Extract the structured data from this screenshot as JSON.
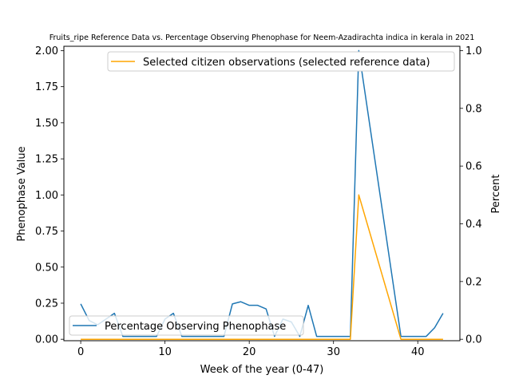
{
  "chart_data": {
    "type": "line",
    "title": "Fruits_ripe Reference Data vs. Percentage Observing Phenophase for Neem-Azadirachta indica in kerala in 2021",
    "xlabel": "Week of the year (0-47)",
    "ylabel": "Phenophase Value",
    "y2label": "Percent",
    "xlim": [
      -2,
      45
    ],
    "ylim": [
      -0.01,
      2.03
    ],
    "y2lim": [
      -0.005,
      1.015
    ],
    "xticks": [
      0,
      10,
      20,
      30,
      40
    ],
    "yticks": [
      0.0,
      0.25,
      0.5,
      0.75,
      1.0,
      1.25,
      1.5,
      1.75,
      2.0
    ],
    "y2ticks": [
      0.0,
      0.2,
      0.4,
      0.6,
      0.8,
      1.0
    ],
    "grid": false,
    "series": [
      {
        "name": "Percentage Observing Phenophase",
        "axis": "left",
        "color": "#1f77b4",
        "legend_position": "lower-left",
        "x": [
          0,
          1,
          2,
          3,
          4,
          5,
          6,
          7,
          8,
          9,
          10,
          11,
          12,
          13,
          14,
          15,
          16,
          17,
          18,
          19,
          20,
          21,
          22,
          23,
          24,
          25,
          26,
          27,
          28,
          29,
          30,
          31,
          32,
          33,
          38,
          39,
          40,
          41,
          42,
          43
        ],
        "values": [
          0.245,
          0.13,
          0.1,
          0.14,
          0.18,
          0.02,
          0.02,
          0.02,
          0.02,
          0.02,
          0.14,
          0.18,
          0.02,
          0.02,
          0.02,
          0.02,
          0.02,
          0.02,
          0.245,
          0.26,
          0.235,
          0.235,
          0.21,
          0.02,
          0.14,
          0.12,
          0.02,
          0.235,
          0.02,
          0.02,
          0.02,
          0.02,
          0.02,
          2.0,
          0.02,
          0.02,
          0.02,
          0.02,
          0.08,
          0.18
        ]
      },
      {
        "name": "Selected citizen observations (selected reference data)",
        "axis": "right",
        "color": "#ffa500",
        "legend_position": "upper-right",
        "x": [
          0,
          1,
          2,
          3,
          4,
          5,
          6,
          7,
          8,
          9,
          10,
          11,
          12,
          13,
          14,
          15,
          16,
          17,
          18,
          19,
          20,
          21,
          22,
          23,
          24,
          25,
          26,
          27,
          28,
          29,
          30,
          31,
          32,
          33,
          38,
          39,
          40,
          41,
          42,
          43
        ],
        "values": [
          0,
          0,
          0,
          0,
          0,
          0,
          0,
          0,
          0,
          0,
          0,
          0,
          0,
          0,
          0,
          0,
          0,
          0,
          0,
          0,
          0,
          0,
          0,
          0,
          0,
          0,
          0,
          0,
          0,
          0,
          0,
          0,
          0,
          0.5,
          0,
          0,
          0,
          0,
          0,
          0
        ]
      }
    ]
  }
}
